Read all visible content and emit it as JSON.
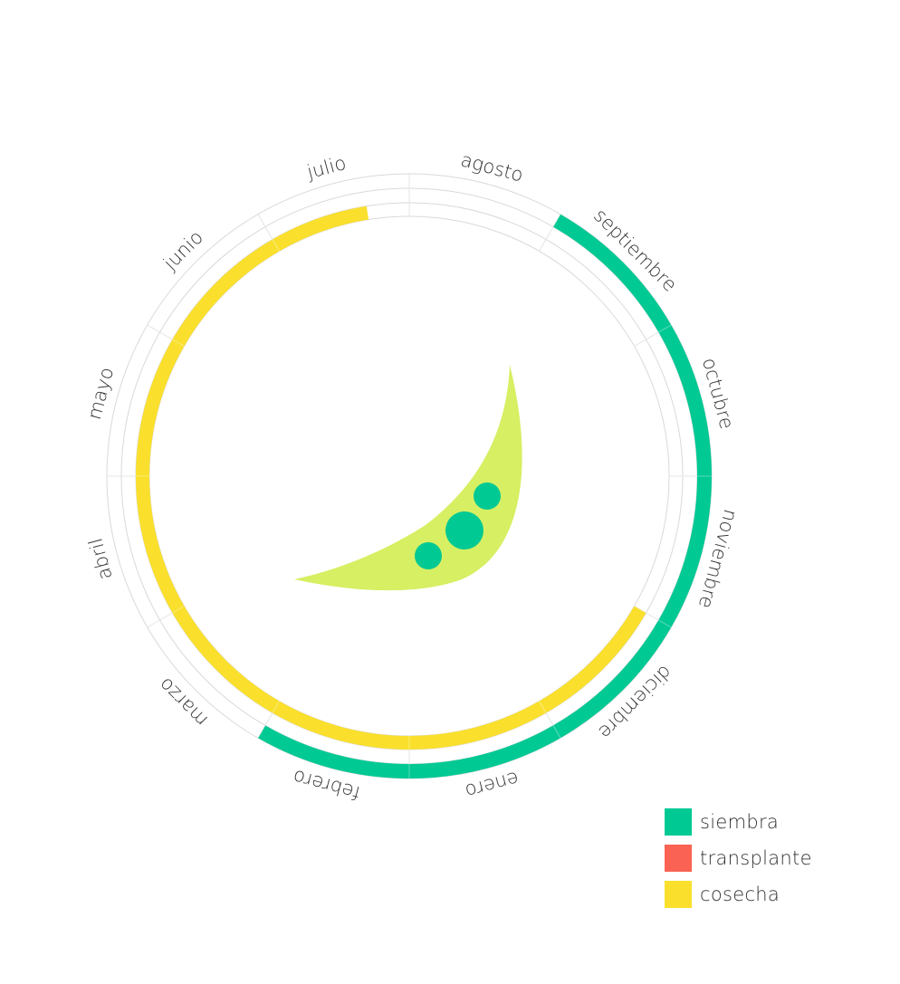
{
  "chart_data": {
    "type": "radial-calendar",
    "months": [
      "enero",
      "febrero",
      "marzo",
      "abril",
      "mayo",
      "junio",
      "julio",
      "agosto",
      "septiembre",
      "octubre",
      "noviembre",
      "diciembre"
    ],
    "series": [
      {
        "name": "siembra",
        "color": "#00c994",
        "ring": "outer",
        "months": [
          "septiembre",
          "octubre",
          "noviembre",
          "diciembre",
          "enero",
          "febrero"
        ]
      },
      {
        "name": "transplante",
        "color": "#fa6353",
        "ring": "middle",
        "months": []
      },
      {
        "name": "cosecha",
        "color": "#fae02c",
        "ring": "inner",
        "months": [
          "diciembre",
          "enero",
          "febrero",
          "marzo",
          "abril",
          "mayo",
          "junio",
          "julio"
        ],
        "end_fraction_in_last_month": 0.7
      }
    ],
    "icon": "pea-pod-icon"
  },
  "legend": {
    "items": [
      {
        "label": "siembra",
        "color": "#00c994"
      },
      {
        "label": "transplante",
        "color": "#fa6353"
      },
      {
        "label": "cosecha",
        "color": "#fae02c"
      }
    ]
  }
}
